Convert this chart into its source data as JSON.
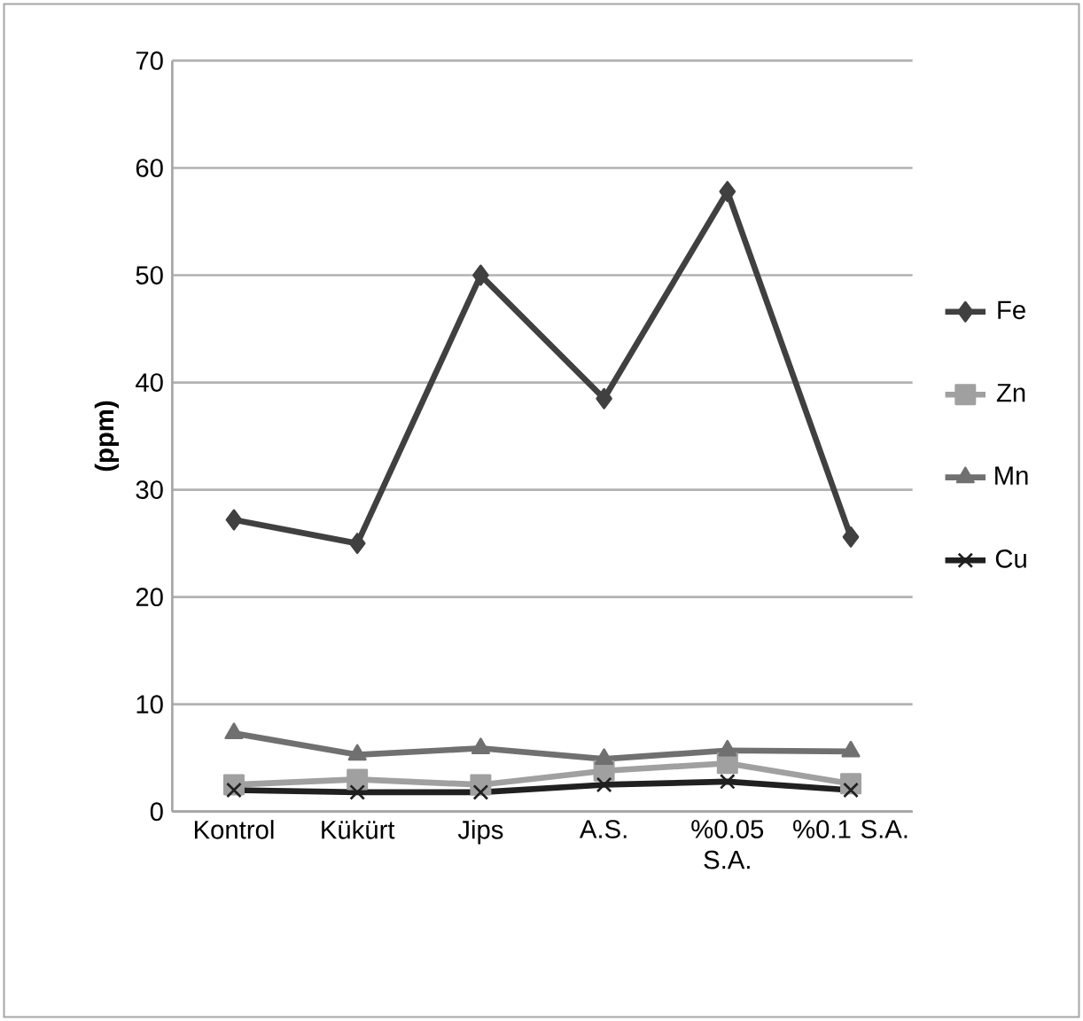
{
  "chart_data": {
    "type": "line",
    "ylabel": "**(ppm)**",
    "categories": [
      "Kontrol",
      "Kükürt",
      "Jips",
      "A.S.",
      "%0.05 S.A.",
      "%0.1 S.A."
    ],
    "series": [
      {
        "name": "Fe",
        "color": "#404040",
        "marker": "diamond",
        "values": [
          27.2,
          25,
          50,
          38.5,
          57.8,
          25.6
        ]
      },
      {
        "name": "Zn",
        "color": "#a0a0a0",
        "marker": "square",
        "values": [
          2.5,
          3,
          2.5,
          3.8,
          4.5,
          2.6
        ]
      },
      {
        "name": "Mn",
        "color": "#707070",
        "marker": "triangle",
        "values": [
          7.3,
          5.3,
          5.9,
          4.9,
          5.7,
          5.6
        ]
      },
      {
        "name": "Cu",
        "color": "#202020",
        "marker": "cross",
        "values": [
          2,
          1.8,
          1.8,
          2.5,
          2.8,
          2
        ]
      }
    ],
    "ylim": [
      0,
      70
    ],
    "yticks": [
      0,
      10,
      20,
      30,
      40,
      50,
      60,
      70
    ],
    "grid": "y",
    "legend": "right"
  }
}
